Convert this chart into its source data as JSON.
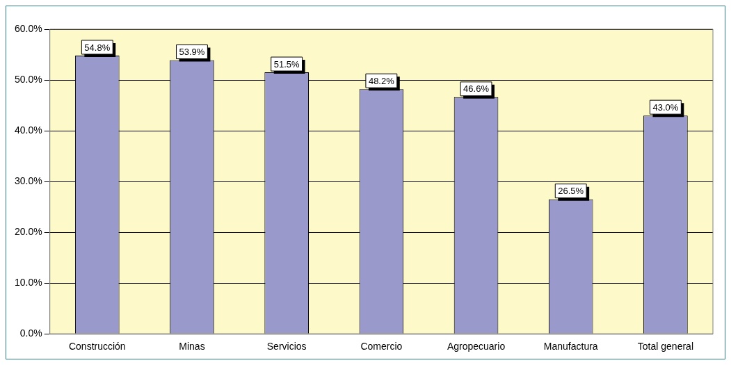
{
  "chart_data": {
    "type": "bar",
    "categories": [
      "Construcción",
      "Minas",
      "Servicios",
      "Comercio",
      "Agropecuario",
      "Manufactura",
      "Total general"
    ],
    "values": [
      54.8,
      53.9,
      51.5,
      48.2,
      46.6,
      26.5,
      43.0
    ],
    "value_labels": [
      "54.8%",
      "53.9%",
      "51.5%",
      "48.2%",
      "46.6%",
      "26.5%",
      "43.0%"
    ],
    "color": "#9999cc",
    "ylim": [
      0,
      60
    ],
    "yticks": [
      {
        "value": 0,
        "label": "0.0%"
      },
      {
        "value": 10,
        "label": "10.0%"
      },
      {
        "value": 20,
        "label": "20.0%"
      },
      {
        "value": 30,
        "label": "30.0%"
      },
      {
        "value": 40,
        "label": "40.0%"
      },
      {
        "value": 50,
        "label": "50.0%"
      },
      {
        "value": 60,
        "label": "60.0%"
      }
    ],
    "grid": "y",
    "legend": false
  }
}
